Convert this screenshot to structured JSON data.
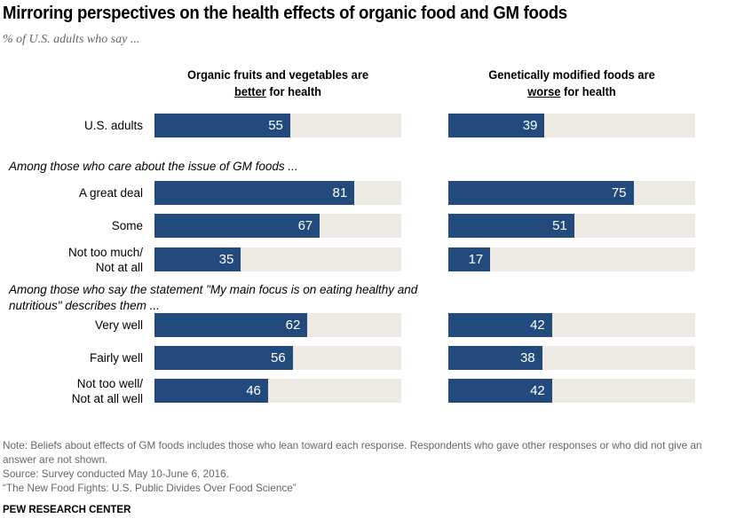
{
  "chart_data": {
    "type": "bar",
    "title": "Mirroring perspectives on the health effects of organic food and GM foods",
    "subtitle": "% of U.S. adults who say ...",
    "xlim": [
      0,
      100
    ],
    "series": [
      {
        "name": "Organic fruits and vegetables are better for health",
        "header_line1": "Organic fruits and vegetables are",
        "header_emph": "better",
        "header_rest": " for health",
        "values": [
          55,
          81,
          67,
          35,
          62,
          56,
          46
        ]
      },
      {
        "name": "Genetically modified foods are worse for health",
        "header_line1": "Genetically modified foods are",
        "header_emph": "worse",
        "header_rest": " for health",
        "values": [
          39,
          75,
          51,
          17,
          42,
          38,
          42
        ]
      }
    ],
    "categories": [
      [
        "U.S. adults"
      ],
      [
        "A great deal"
      ],
      [
        "Some"
      ],
      [
        "Not too much/",
        "Not at all"
      ],
      [
        "Very well"
      ],
      [
        "Fairly well"
      ],
      [
        "Not too well/",
        "Not at all well"
      ]
    ],
    "sections": [
      "Among those who care about the issue of GM foods ...",
      "Among those who say the statement \"My main focus is on eating healthy and nutritious\" describes them ..."
    ],
    "colors": {
      "bar": "#224a7c",
      "track": "#ede9e3",
      "value_text": "#ffffff"
    }
  },
  "footer": {
    "note": "Note: Beliefs about effects of GM foods includes those who lean toward each response. Respondents who gave other responses or who did not give an answer are not shown.",
    "source": "Source: Survey conducted May 10-June 6, 2016.",
    "report": "“The New Food Fights: U.S. Public Divides Over Food Science”",
    "brand": "PEW RESEARCH CENTER"
  }
}
